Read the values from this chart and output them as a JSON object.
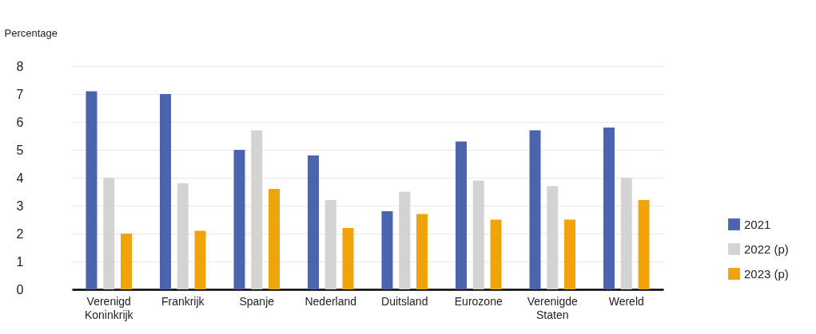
{
  "chart_data": {
    "type": "bar",
    "ylabel": "Percentage",
    "categories": [
      "Verenigd Koninkrijk",
      "Frankrijk",
      "Spanje",
      "Nederland",
      "Duitsland",
      "Eurozone",
      "Verenigde Staten",
      "Wereld"
    ],
    "series": [
      {
        "name": "2021",
        "color": "#4a65ad",
        "values": [
          7.1,
          7.0,
          5.0,
          4.8,
          2.8,
          5.3,
          5.7,
          5.8
        ]
      },
      {
        "name": "2022 (p)",
        "color": "#d3d3d3",
        "values": [
          4.0,
          3.8,
          5.7,
          3.2,
          3.5,
          3.9,
          3.7,
          4.0
        ]
      },
      {
        "name": "2023 (p)",
        "color": "#f0a30a",
        "values": [
          2.0,
          2.1,
          3.6,
          2.2,
          2.7,
          2.5,
          2.5,
          3.2
        ]
      }
    ],
    "ylim": [
      0,
      8
    ],
    "yticks": [
      0,
      1,
      2,
      3,
      4,
      5,
      6,
      7,
      8
    ],
    "grid": "y",
    "legend": "bottom right"
  }
}
